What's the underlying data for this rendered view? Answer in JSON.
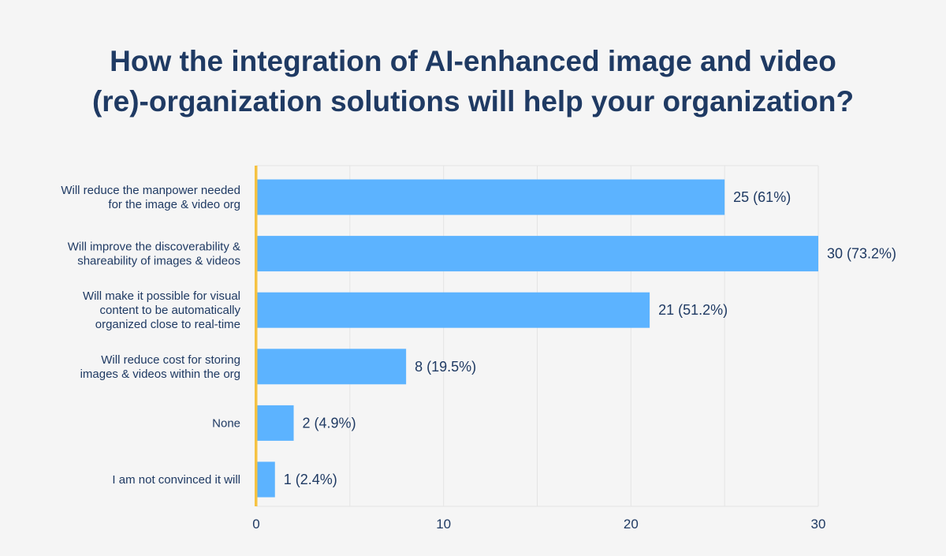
{
  "title": {
    "line1": "How the integration of AI-enhanced image and video",
    "line2": "(re)-organization solutions will help your organization?"
  },
  "chart_data": {
    "type": "bar",
    "orientation": "horizontal",
    "categories": [
      [
        "Will reduce the manpower needed",
        "for the image & video org"
      ],
      [
        "Will improve the discoverability &",
        "shareability of images & videos"
      ],
      [
        "Will make it possible for visual",
        "content to be automatically",
        "organized close to real-time"
      ],
      [
        "Will reduce cost for storing",
        "images & videos within the org"
      ],
      [
        "None"
      ],
      [
        "I am not convinced it will"
      ]
    ],
    "values": [
      25,
      30,
      21,
      8,
      2,
      1
    ],
    "data_labels": [
      "25 (61%)",
      "30 (73.2%)",
      "21 (51.2%)",
      "8 (19.5%)",
      "2 (4.9%)",
      "1 (2.4%)"
    ],
    "xlim": [
      0,
      30
    ],
    "xticks": [
      0,
      10,
      20,
      30
    ],
    "grid": true,
    "colors": {
      "bar": "#5cb3ff",
      "axis": "#f5c242",
      "grid": "#e4e4e4",
      "text": "#1f3a63",
      "background": "#f5f5f5"
    }
  }
}
